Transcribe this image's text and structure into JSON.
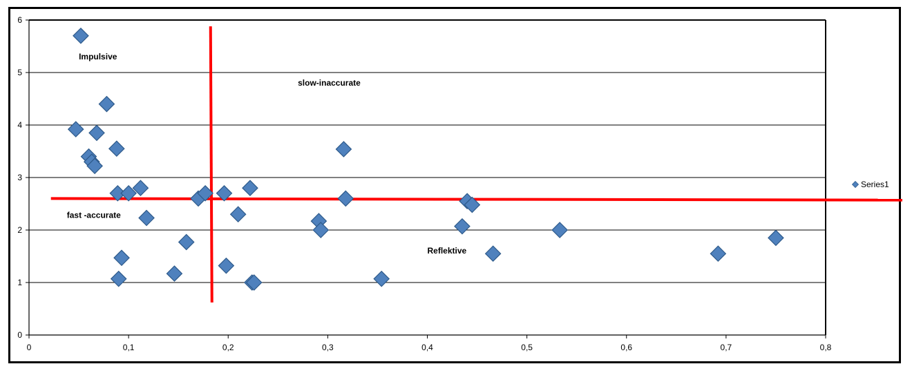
{
  "chart_data": {
    "type": "scatter",
    "title": "",
    "xlabel": "",
    "ylabel": "",
    "xlim": [
      0,
      0.8
    ],
    "ylim": [
      0,
      6
    ],
    "x_ticks": [
      "0",
      "0,1",
      "0,2",
      "0,3",
      "0,4",
      "0,5",
      "0,6",
      "0,7",
      "0,8"
    ],
    "y_ticks": [
      "0",
      "1",
      "2",
      "3",
      "4",
      "5",
      "6"
    ],
    "grid": "horizontal",
    "legend_position": "right",
    "marker_color": "#4f81bd",
    "threshold_color": "#ff0000",
    "thresholds": {
      "x": 0.183,
      "y": 2.6
    },
    "series": [
      {
        "name": "Series1",
        "points": [
          {
            "x": 0.052,
            "y": 5.7
          },
          {
            "x": 0.078,
            "y": 4.4
          },
          {
            "x": 0.047,
            "y": 3.92
          },
          {
            "x": 0.068,
            "y": 3.85
          },
          {
            "x": 0.088,
            "y": 3.55
          },
          {
            "x": 0.06,
            "y": 3.4
          },
          {
            "x": 0.063,
            "y": 3.3
          },
          {
            "x": 0.066,
            "y": 3.22
          },
          {
            "x": 0.089,
            "y": 2.7
          },
          {
            "x": 0.1,
            "y": 2.7
          },
          {
            "x": 0.112,
            "y": 2.8
          },
          {
            "x": 0.118,
            "y": 2.23
          },
          {
            "x": 0.093,
            "y": 1.47
          },
          {
            "x": 0.09,
            "y": 1.07
          },
          {
            "x": 0.146,
            "y": 1.17
          },
          {
            "x": 0.158,
            "y": 1.77
          },
          {
            "x": 0.17,
            "y": 2.6
          },
          {
            "x": 0.177,
            "y": 2.7
          },
          {
            "x": 0.196,
            "y": 2.7
          },
          {
            "x": 0.198,
            "y": 1.32
          },
          {
            "x": 0.21,
            "y": 2.3
          },
          {
            "x": 0.222,
            "y": 2.8
          },
          {
            "x": 0.224,
            "y": 1.0
          },
          {
            "x": 0.226,
            "y": 1.0
          },
          {
            "x": 0.291,
            "y": 2.17
          },
          {
            "x": 0.293,
            "y": 2.0
          },
          {
            "x": 0.316,
            "y": 3.54
          },
          {
            "x": 0.318,
            "y": 2.6
          },
          {
            "x": 0.354,
            "y": 1.07
          },
          {
            "x": 0.435,
            "y": 2.07
          },
          {
            "x": 0.44,
            "y": 2.55
          },
          {
            "x": 0.445,
            "y": 2.48
          },
          {
            "x": 0.466,
            "y": 1.55
          },
          {
            "x": 0.533,
            "y": 2.0
          },
          {
            "x": 0.692,
            "y": 1.55
          },
          {
            "x": 0.75,
            "y": 1.85
          }
        ]
      }
    ],
    "annotations": [
      {
        "text": "Impulsive",
        "x": 0.05,
        "y": 5.25
      },
      {
        "text": "slow-inaccurate",
        "x": 0.27,
        "y": 4.75
      },
      {
        "text": "fast -accurate",
        "x": 0.038,
        "y": 2.23
      },
      {
        "text": "Reflektive",
        "x": 0.4,
        "y": 1.55
      }
    ]
  }
}
